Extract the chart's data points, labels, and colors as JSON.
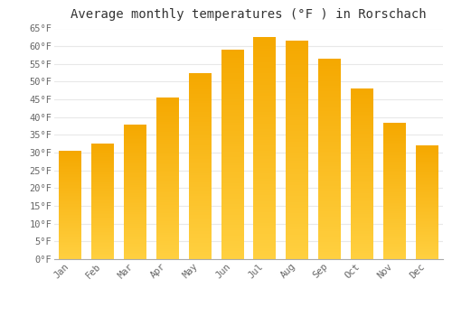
{
  "months": [
    "Jan",
    "Feb",
    "Mar",
    "Apr",
    "May",
    "Jun",
    "Jul",
    "Aug",
    "Sep",
    "Oct",
    "Nov",
    "Dec"
  ],
  "values": [
    30.5,
    32.5,
    38.0,
    45.5,
    52.5,
    59.0,
    62.5,
    61.5,
    56.5,
    48.0,
    38.5,
    32.0
  ],
  "title": "Average monthly temperatures (°F ) in Rorschach",
  "ylim": [
    0,
    65
  ],
  "yticks": [
    0,
    5,
    10,
    15,
    20,
    25,
    30,
    35,
    40,
    45,
    50,
    55,
    60,
    65
  ],
  "ytick_labels": [
    "0°F",
    "5°F",
    "10°F",
    "15°F",
    "20°F",
    "25°F",
    "30°F",
    "35°F",
    "40°F",
    "45°F",
    "50°F",
    "55°F",
    "60°F",
    "65°F"
  ],
  "bar_color_top": "#F5A800",
  "bar_color_bottom": "#FFD040",
  "plot_bg": "#ffffff",
  "fig_bg": "#ffffff",
  "grid_color": "#e8e8e8",
  "title_fontsize": 10,
  "tick_fontsize": 7.5,
  "font_family": "monospace",
  "tick_color": "#666666",
  "bar_width": 0.7
}
